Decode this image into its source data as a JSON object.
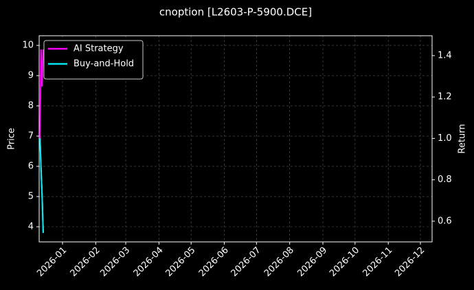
{
  "chart_data": {
    "type": "line",
    "title": "cnoption [L2603-P-5900.DCE]",
    "ylabel": "Price",
    "y2label": "Return",
    "x": [
      -21,
      -20,
      -19,
      -18
    ],
    "xlim": [
      -21.8,
      344.9
    ],
    "xticks": [
      {
        "value": 0,
        "label": "2026-01"
      },
      {
        "value": 31,
        "label": "2026-02"
      },
      {
        "value": 59,
        "label": "2026-03"
      },
      {
        "value": 90,
        "label": "2026-04"
      },
      {
        "value": 120,
        "label": "2026-05"
      },
      {
        "value": 151,
        "label": "2026-06"
      },
      {
        "value": 181,
        "label": "2026-07"
      },
      {
        "value": 212,
        "label": "2026-08"
      },
      {
        "value": 243,
        "label": "2026-09"
      },
      {
        "value": 273,
        "label": "2026-10"
      },
      {
        "value": 304,
        "label": "2026-11"
      },
      {
        "value": 334,
        "label": "2026-12"
      }
    ],
    "ylim": [
      3.5,
      10.32
    ],
    "yticks": [
      4,
      5,
      6,
      7,
      8,
      9,
      10
    ],
    "y2lim": [
      0.5,
      1.496
    ],
    "y2ticks": [
      0.6,
      0.8,
      {
        "value": 1,
        "label": "1.0"
      },
      1.2,
      1.4
    ],
    "grid": true,
    "legend": "upper left",
    "series": [
      {
        "color": "#ffffff",
        "values": [
          7.0,
          5.9,
          5.0,
          3.8
        ]
      },
      {
        "name": "AI Strategy",
        "color": "#ff00ff",
        "axis": "y2",
        "values": [
          1.0,
          1.43,
          1.25,
          1.43
        ]
      },
      {
        "name": "Buy-and-Hold",
        "color": "#00e5ee",
        "axis": "y2",
        "values": [
          1.0,
          0.843,
          0.714,
          0.543
        ]
      }
    ]
  }
}
